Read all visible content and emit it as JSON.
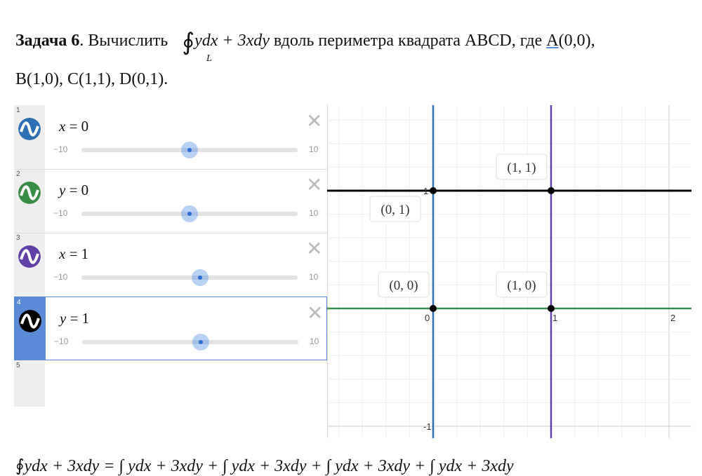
{
  "task": {
    "title": "Задача 6",
    "text1": ". Вычислить ",
    "integrand": "ydx + 3xdy",
    "text2": " вдоль периметра квадрата ABCD, где ",
    "pointA": "A",
    "pointA_coords": "(0,0),",
    "sub": "L",
    "line2": "B(1,0), C(1,1), D(0,1)."
  },
  "expressions": [
    {
      "num": "1",
      "lhs": "x",
      "rhs": "= 0",
      "color": "#2d70b3",
      "min": "−10",
      "max": "10",
      "value": 0
    },
    {
      "num": "2",
      "lhs": "y",
      "rhs": "= 0",
      "color": "#388c46",
      "min": "−10",
      "max": "10",
      "value": 0
    },
    {
      "num": "3",
      "lhs": "x",
      "rhs": "= 1",
      "color": "#6042a6",
      "min": "−10",
      "max": "10",
      "value": 1
    },
    {
      "num": "4",
      "lhs": "y",
      "rhs": "= 1",
      "color": "#000000",
      "min": "−10",
      "max": "10",
      "value": 1
    }
  ],
  "empty_num": "5",
  "graph": {
    "ticks_x": [
      "0",
      "1",
      "2"
    ],
    "ticks_y": [
      "1",
      "-1"
    ],
    "points": [
      {
        "label": "(0, 0)",
        "x": 0,
        "y": 0
      },
      {
        "label": "(1, 0)",
        "x": 1,
        "y": 0
      },
      {
        "label": "(0, 1)",
        "x": 0,
        "y": 1
      },
      {
        "label": "(1, 1)",
        "x": 1,
        "y": 1
      }
    ]
  },
  "formula": "ydx + 3xdy = ∫ ydx + 3xdy + ∫ ydx + 3xdy + ∫ ydx + 3xdy + ∫ ydx + 3xdy"
}
